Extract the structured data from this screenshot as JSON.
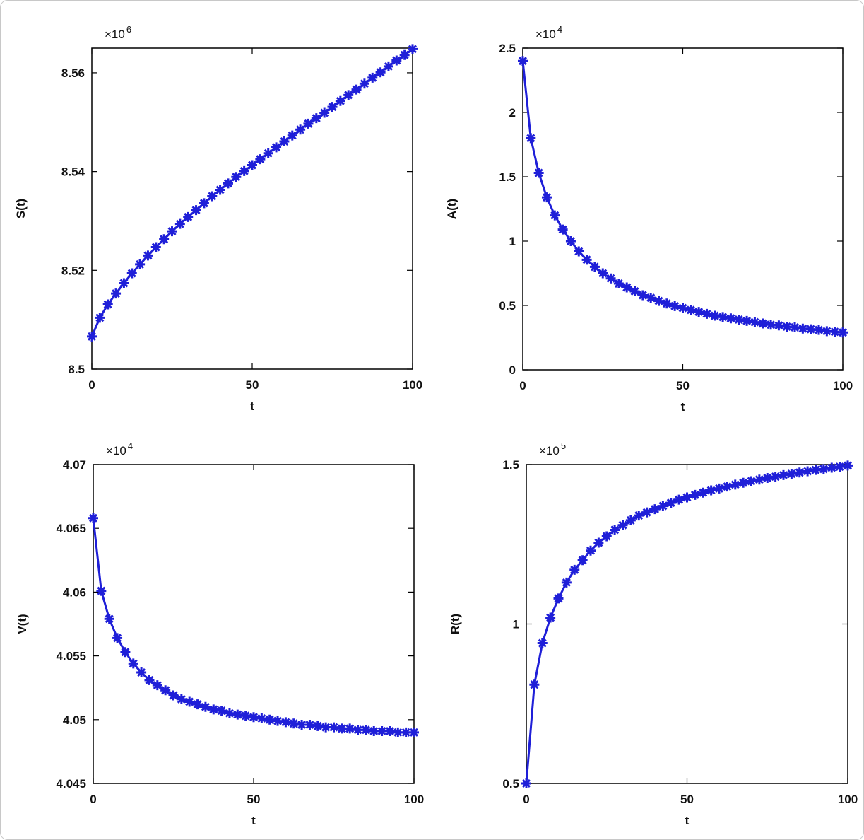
{
  "chart_data": [
    {
      "type": "line",
      "xlabel": "t",
      "ylabel": "S(t)",
      "y_multiplier": "×10",
      "y_multiplier_exponent": "6",
      "color": "#1f1fd8",
      "xlim": [
        0,
        100
      ],
      "xticks": [
        0,
        50,
        100
      ],
      "ylim": [
        8.5,
        8.565
      ],
      "yticks": [
        8.5,
        8.52,
        8.54,
        8.56
      ],
      "x": [
        0,
        2.5,
        5,
        7.5,
        10,
        12.5,
        15,
        17.5,
        20,
        22.5,
        25,
        27.5,
        30,
        32.5,
        35,
        37.5,
        40,
        42.5,
        45,
        47.5,
        50,
        52.5,
        55,
        57.5,
        60,
        62.5,
        65,
        67.5,
        70,
        72.5,
        75,
        77.5,
        80,
        82.5,
        85,
        87.5,
        90,
        92.5,
        95,
        97.5,
        100
      ],
      "values": [
        8.5066,
        8.5104,
        8.5131,
        8.5153,
        8.5174,
        8.5194,
        8.5212,
        8.523,
        8.5247,
        8.5263,
        8.5279,
        8.5294,
        8.5308,
        8.5322,
        8.5336,
        8.535,
        8.5363,
        8.5376,
        8.5389,
        8.5401,
        8.5413,
        8.5425,
        8.5437,
        8.5449,
        8.5461,
        8.5473,
        8.5485,
        8.5497,
        8.5508,
        8.5519,
        8.5531,
        8.5543,
        8.5555,
        8.5566,
        8.5578,
        8.559,
        8.5601,
        8.5613,
        8.5625,
        8.5636,
        8.5648
      ]
    },
    {
      "type": "line",
      "xlabel": "t",
      "ylabel": "A(t)",
      "y_multiplier": "×10",
      "y_multiplier_exponent": "4",
      "color": "#1f1fd8",
      "xlim": [
        0,
        100
      ],
      "xticks": [
        0,
        50,
        100
      ],
      "ylim": [
        0,
        2.5
      ],
      "yticks": [
        0,
        0.5,
        1,
        1.5,
        2,
        2.5
      ],
      "x": [
        0,
        2.5,
        5,
        7.5,
        10,
        12.5,
        15,
        17.5,
        20,
        22.5,
        25,
        27.5,
        30,
        32.5,
        35,
        37.5,
        40,
        42.5,
        45,
        47.5,
        50,
        52.5,
        55,
        57.5,
        60,
        62.5,
        65,
        67.5,
        70,
        72.5,
        75,
        77.5,
        80,
        82.5,
        85,
        87.5,
        90,
        92.5,
        95,
        97.5,
        100
      ],
      "values": [
        2.4,
        1.8,
        1.53,
        1.34,
        1.2,
        1.09,
        1.0,
        0.92,
        0.855,
        0.8,
        0.75,
        0.71,
        0.67,
        0.64,
        0.61,
        0.58,
        0.56,
        0.535,
        0.515,
        0.495,
        0.48,
        0.465,
        0.45,
        0.435,
        0.42,
        0.41,
        0.4,
        0.39,
        0.38,
        0.37,
        0.36,
        0.35,
        0.345,
        0.335,
        0.33,
        0.32,
        0.315,
        0.31,
        0.3,
        0.295,
        0.29
      ]
    },
    {
      "type": "line",
      "xlabel": "t",
      "ylabel": "V(t)",
      "y_multiplier": "×10",
      "y_multiplier_exponent": "4",
      "color": "#1f1fd8",
      "xlim": [
        0,
        100
      ],
      "xticks": [
        0,
        50,
        100
      ],
      "ylim": [
        4.045,
        4.07
      ],
      "yticks": [
        4.045,
        4.05,
        4.055,
        4.06,
        4.065,
        4.07
      ],
      "x": [
        0,
        2.5,
        5,
        7.5,
        10,
        12.5,
        15,
        17.5,
        20,
        22.5,
        25,
        27.5,
        30,
        32.5,
        35,
        37.5,
        40,
        42.5,
        45,
        47.5,
        50,
        52.5,
        55,
        57.5,
        60,
        62.5,
        65,
        67.5,
        70,
        72.5,
        75,
        77.5,
        80,
        82.5,
        85,
        87.5,
        90,
        92.5,
        95,
        97.5,
        100
      ],
      "values": [
        4.0658,
        4.0601,
        4.0579,
        4.0564,
        4.0553,
        4.0544,
        4.0537,
        4.0531,
        4.0527,
        4.0523,
        4.0519,
        4.0516,
        4.0514,
        4.0512,
        4.051,
        4.0508,
        4.0507,
        4.0505,
        4.0504,
        4.0503,
        4.0502,
        4.0501,
        4.05,
        4.0499,
        4.0498,
        4.0497,
        4.0496,
        4.0496,
        4.0495,
        4.0494,
        4.0494,
        4.0493,
        4.0493,
        4.0492,
        4.0492,
        4.0491,
        4.0491,
        4.0491,
        4.049,
        4.049,
        4.049
      ]
    },
    {
      "type": "line",
      "xlabel": "t",
      "ylabel": "R(t)",
      "y_multiplier": "×10",
      "y_multiplier_exponent": "5",
      "color": "#1f1fd8",
      "xlim": [
        0,
        100
      ],
      "xticks": [
        0,
        50,
        100
      ],
      "ylim": [
        0.5,
        1.5
      ],
      "yticks": [
        0.5,
        1,
        1.5
      ],
      "x": [
        0,
        2.5,
        5,
        7.5,
        10,
        12.5,
        15,
        17.5,
        20,
        22.5,
        25,
        27.5,
        30,
        32.5,
        35,
        37.5,
        40,
        42.5,
        45,
        47.5,
        50,
        52.5,
        55,
        57.5,
        60,
        62.5,
        65,
        67.5,
        70,
        72.5,
        75,
        77.5,
        80,
        82.5,
        85,
        87.5,
        90,
        92.5,
        95,
        97.5,
        100
      ],
      "values": [
        0.5,
        0.81,
        0.94,
        1.02,
        1.08,
        1.13,
        1.17,
        1.2,
        1.23,
        1.255,
        1.275,
        1.295,
        1.31,
        1.325,
        1.34,
        1.35,
        1.36,
        1.37,
        1.38,
        1.39,
        1.397,
        1.405,
        1.412,
        1.419,
        1.425,
        1.431,
        1.437,
        1.443,
        1.448,
        1.453,
        1.458,
        1.462,
        1.467,
        1.471,
        1.475,
        1.479,
        1.483,
        1.486,
        1.49,
        1.493,
        1.497
      ]
    }
  ]
}
